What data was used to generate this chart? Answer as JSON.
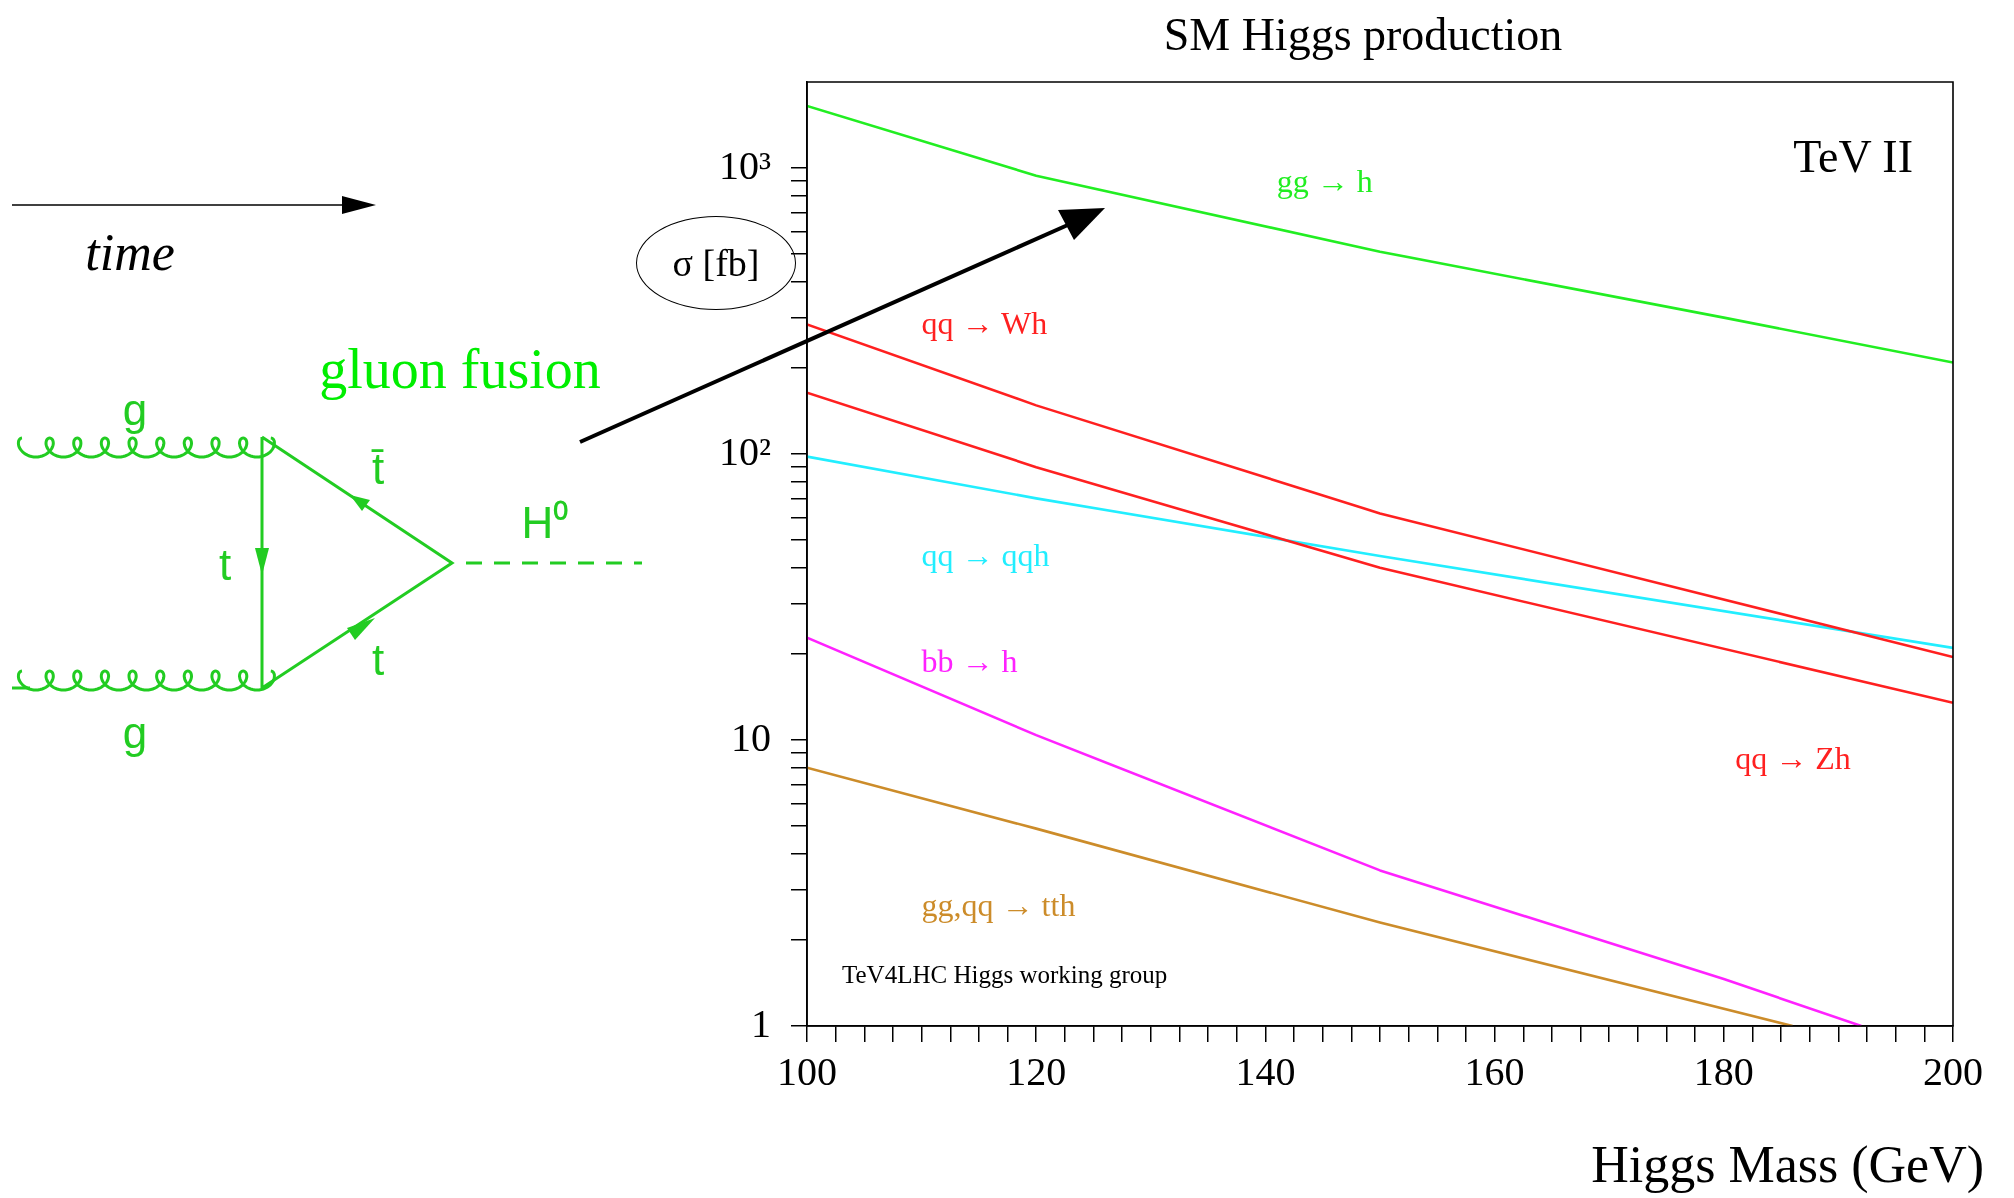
{
  "chart_data": {
    "type": "line",
    "title": "SM Higgs production",
    "xlabel": "Higgs Mass (GeV)",
    "ylabel": "σ [fb]",
    "log": "y",
    "legend": false,
    "marker": "none",
    "line_style": "solid",
    "xlim": [
      100,
      200
    ],
    "ylim": [
      1,
      2000
    ],
    "xticks": [
      100,
      {
        "value": 102.5,
        "label": null
      },
      {
        "value": 105,
        "label": null
      },
      {
        "value": 107.5,
        "label": null
      },
      {
        "value": 110,
        "label": null
      },
      {
        "value": 112.5,
        "label": null
      },
      {
        "value": 115,
        "label": null
      },
      {
        "value": 117.5,
        "label": null
      },
      120,
      {
        "value": 122.5,
        "label": null
      },
      {
        "value": 125,
        "label": null
      },
      {
        "value": 127.5,
        "label": null
      },
      {
        "value": 130,
        "label": null
      },
      {
        "value": 132.5,
        "label": null
      },
      {
        "value": 135,
        "label": null
      },
      {
        "value": 137.5,
        "label": null
      },
      140,
      {
        "value": 142.5,
        "label": null
      },
      {
        "value": 145,
        "label": null
      },
      {
        "value": 147.5,
        "label": null
      },
      {
        "value": 150,
        "label": null
      },
      {
        "value": 152.5,
        "label": null
      },
      {
        "value": 155,
        "label": null
      },
      {
        "value": 157.5,
        "label": null
      },
      160,
      {
        "value": 162.5,
        "label": null
      },
      {
        "value": 165,
        "label": null
      },
      {
        "value": 167.5,
        "label": null
      },
      {
        "value": 170,
        "label": null
      },
      {
        "value": 172.5,
        "label": null
      },
      {
        "value": 175,
        "label": null
      },
      {
        "value": 177.5,
        "label": null
      },
      180,
      {
        "value": 182.5,
        "label": null
      },
      {
        "value": 185,
        "label": null
      },
      {
        "value": 187.5,
        "label": null
      },
      {
        "value": 190,
        "label": null
      },
      {
        "value": 192.5,
        "label": null
      },
      {
        "value": 195,
        "label": null
      },
      {
        "value": 197.5,
        "label": null
      },
      200
    ],
    "yticks": [
      1,
      {
        "value": 2,
        "label": null
      },
      {
        "value": 3,
        "label": null
      },
      {
        "value": 4,
        "label": null
      },
      {
        "value": 5,
        "label": null
      },
      {
        "value": 6,
        "label": null
      },
      {
        "value": 7,
        "label": null
      },
      {
        "value": 8,
        "label": null
      },
      {
        "value": 9,
        "label": null
      },
      10,
      {
        "value": 20,
        "label": null
      },
      {
        "value": 30,
        "label": null
      },
      {
        "value": 40,
        "label": null
      },
      {
        "value": 50,
        "label": null
      },
      {
        "value": 60,
        "label": null
      },
      {
        "value": 70,
        "label": null
      },
      {
        "value": 80,
        "label": null
      },
      {
        "value": 90,
        "label": null
      },
      {
        "value": 100,
        "label": "10²"
      },
      {
        "value": 200,
        "label": null
      },
      {
        "value": 300,
        "label": null
      },
      {
        "value": 400,
        "label": null
      },
      {
        "value": 500,
        "label": null
      },
      {
        "value": 600,
        "label": null
      },
      {
        "value": 700,
        "label": null
      },
      {
        "value": 800,
        "label": null
      },
      {
        "value": 900,
        "label": null
      },
      {
        "value": 1000,
        "label": "10³"
      }
    ],
    "series": [
      {
        "name": "gg → h",
        "color": "#22ee22",
        "x": [
          100,
          120,
          150,
          180,
          200
        ],
        "values": [
          1650,
          940,
          510,
          300,
          209
        ]
      },
      {
        "name": "qq → Wh",
        "color": "#ff2020",
        "x": [
          100,
          120,
          150,
          200
        ],
        "values": [
          284,
          148,
          62,
          19.5
        ]
      },
      {
        "name": "qq → Zh",
        "color": "#ff2020",
        "x": [
          100,
          120,
          150,
          200
        ],
        "values": [
          164,
          90,
          40,
          13.5
        ]
      },
      {
        "name": "qq → qqh",
        "color": "#22eeff",
        "x": [
          100,
          120,
          150,
          200
        ],
        "values": [
          98,
          70,
          44,
          21
        ]
      },
      {
        "name": "bb → h",
        "color": "#ff22ff",
        "x": [
          100,
          120,
          150,
          180,
          192
        ],
        "values": [
          22.8,
          10.4,
          3.5,
          1.46,
          1
        ]
      },
      {
        "name": "gg,qq → tth",
        "color": "#cc8c2a",
        "x": [
          100,
          120,
          150,
          186
        ],
        "values": [
          8.0,
          4.9,
          2.3,
          1
        ]
      }
    ],
    "annotations": [
      "TeV II",
      "TeV4LHC Higgs working group",
      "time",
      "gluon fusion",
      "g",
      "g",
      "t",
      "t̄",
      "t",
      "H⁰"
    ]
  }
}
